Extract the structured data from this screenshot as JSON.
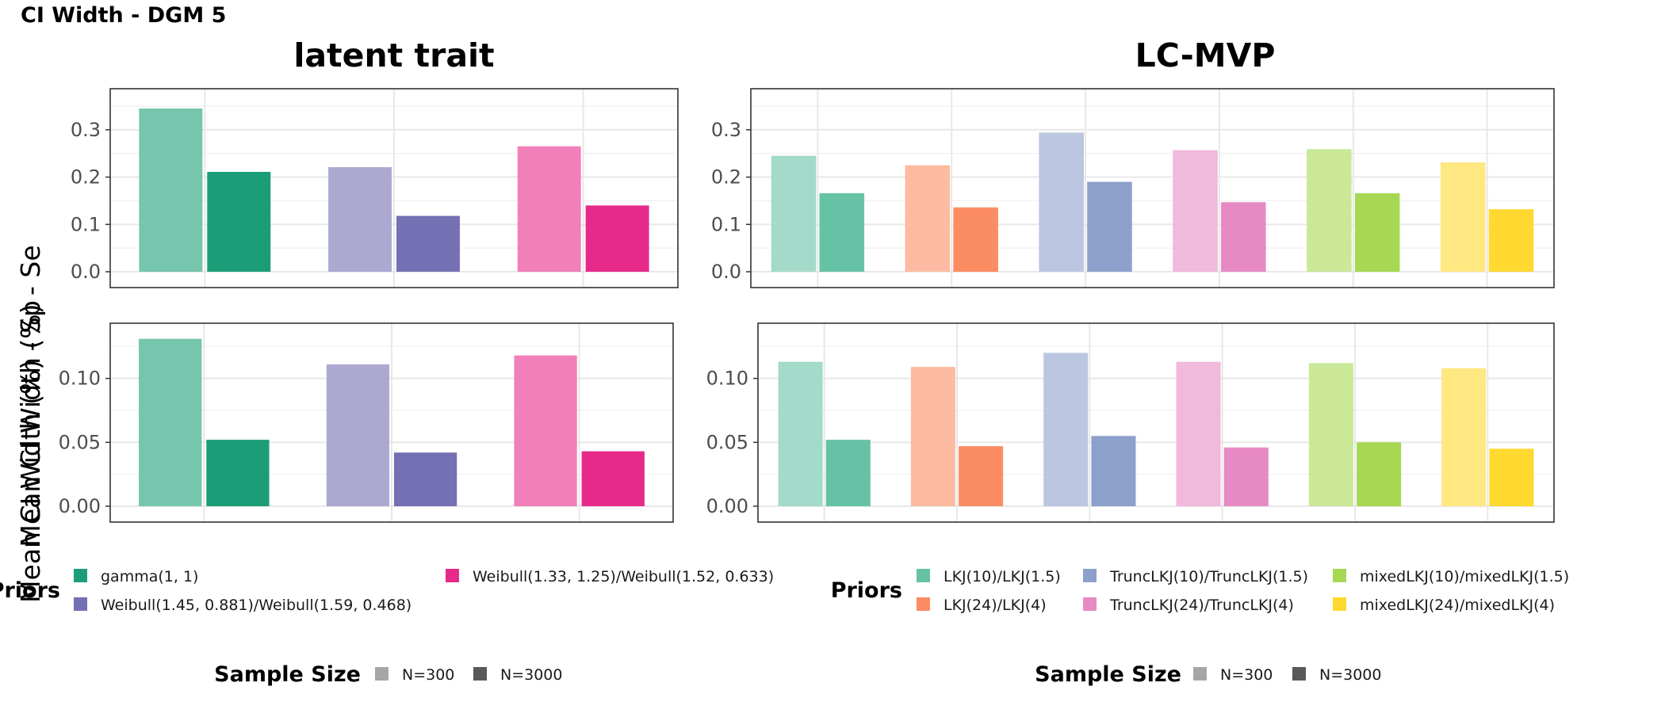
{
  "figure": {
    "title": "CI Width - DGM 5",
    "ylabel_top": "Mean CI Width (%) - Se",
    "ylabel_bottom": "Mean CI Width (%) - Sp"
  },
  "chart_data": [
    {
      "type": "bar",
      "title": "latent trait",
      "row": "Se",
      "ylim": [
        0,
        0.37
      ],
      "yticks": [
        "0.0",
        "0.1",
        "0.2",
        "0.3"
      ],
      "ytick_values": [
        0.0,
        0.1,
        0.2,
        0.3
      ],
      "groups": [
        "gamma(1, 1)",
        "Weibull(1.45, 0.881)/Weibull(1.59, 0.468)",
        "Weibull(1.33, 1.25)/Weibull(1.52, 0.633)"
      ],
      "series": [
        {
          "name": "N=300",
          "values": [
            0.345,
            0.221,
            0.265
          ]
        },
        {
          "name": "N=3000",
          "values": [
            0.211,
            0.118,
            0.14
          ]
        }
      ]
    },
    {
      "type": "bar",
      "title": "LC-MVP",
      "row": "Se",
      "ylim": [
        0,
        0.37
      ],
      "yticks": [
        "0.0",
        "0.1",
        "0.2",
        "0.3"
      ],
      "ytick_values": [
        0.0,
        0.1,
        0.2,
        0.3
      ],
      "groups": [
        "LKJ(10)/LKJ(1.5)",
        "LKJ(24)/LKJ(4)",
        "TruncLKJ(10)/TruncLKJ(1.5)",
        "TruncLKJ(24)/TruncLKJ(4)",
        "mixedLKJ(10)/mixedLKJ(1.5)",
        "mixedLKJ(24)/mixedLKJ(4)"
      ],
      "series": [
        {
          "name": "N=300",
          "values": [
            0.245,
            0.225,
            0.294,
            0.257,
            0.259,
            0.231
          ]
        },
        {
          "name": "N=3000",
          "values": [
            0.166,
            0.136,
            0.19,
            0.147,
            0.166,
            0.132
          ]
        }
      ]
    },
    {
      "type": "bar",
      "title": "",
      "row": "Sp",
      "ylim": [
        0,
        0.137
      ],
      "yticks": [
        "0.00",
        "0.05",
        "0.10"
      ],
      "ytick_values": [
        0.0,
        0.05,
        0.1
      ],
      "groups": [
        "gamma(1, 1)",
        "Weibull(1.45, 0.881)/Weibull(1.59, 0.468)",
        "Weibull(1.33, 1.25)/Weibull(1.52, 0.633)"
      ],
      "series": [
        {
          "name": "N=300",
          "values": [
            0.131,
            0.111,
            0.118
          ]
        },
        {
          "name": "N=3000",
          "values": [
            0.052,
            0.042,
            0.043
          ]
        }
      ]
    },
    {
      "type": "bar",
      "title": "",
      "row": "Sp",
      "ylim": [
        0,
        0.137
      ],
      "yticks": [
        "0.00",
        "0.05",
        "0.10"
      ],
      "ytick_values": [
        0.0,
        0.05,
        0.1
      ],
      "groups": [
        "LKJ(10)/LKJ(1.5)",
        "LKJ(24)/LKJ(4)",
        "TruncLKJ(10)/TruncLKJ(1.5)",
        "TruncLKJ(24)/TruncLKJ(4)",
        "mixedLKJ(10)/mixedLKJ(1.5)",
        "mixedLKJ(24)/mixedLKJ(4)"
      ],
      "series": [
        {
          "name": "N=300",
          "values": [
            0.113,
            0.109,
            0.12,
            0.113,
            0.112,
            0.108
          ]
        },
        {
          "name": "N=3000",
          "values": [
            0.052,
            0.047,
            0.055,
            0.046,
            0.05,
            0.045
          ]
        }
      ]
    }
  ],
  "legends": {
    "left": {
      "title": "Priors",
      "items": [
        {
          "label": "gamma(1, 1)",
          "color": "#1b9e77"
        },
        {
          "label": "Weibull(1.45, 0.881)/Weibull(1.59, 0.468)",
          "color": "#7570b3"
        },
        {
          "label": "Weibull(1.33, 1.25)/Weibull(1.52, 0.633)",
          "color": "#e7298a"
        }
      ],
      "size_title": "Sample Size",
      "size_items": [
        {
          "label": "N=300",
          "color": "#a6a6a6"
        },
        {
          "label": "N=3000",
          "color": "#595959"
        }
      ]
    },
    "right": {
      "title": "Priors",
      "items": [
        {
          "label": "LKJ(10)/LKJ(1.5)",
          "color": "#66c2a5"
        },
        {
          "label": "LKJ(24)/LKJ(4)",
          "color": "#fc8d62"
        },
        {
          "label": "TruncLKJ(10)/TruncLKJ(1.5)",
          "color": "#8da0cb"
        },
        {
          "label": "TruncLKJ(24)/TruncLKJ(4)",
          "color": "#e78ac3"
        },
        {
          "label": "mixedLKJ(10)/mixedLKJ(1.5)",
          "color": "#a6d854"
        },
        {
          "label": "mixedLKJ(24)/mixedLKJ(4)",
          "color": "#ffd92f"
        }
      ],
      "size_title": "Sample Size",
      "size_items": [
        {
          "label": "N=300",
          "color": "#a6a6a6"
        },
        {
          "label": "N=3000",
          "color": "#595959"
        }
      ]
    }
  }
}
